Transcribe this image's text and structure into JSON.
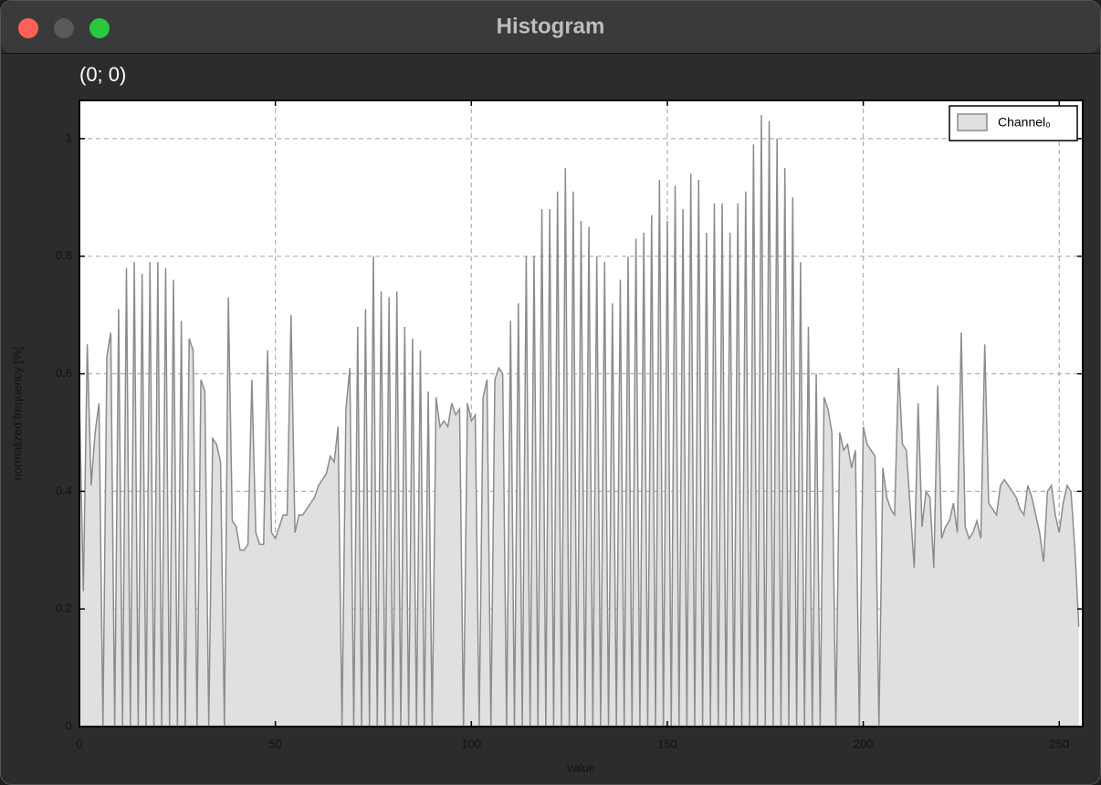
{
  "window": {
    "title": "Histogram"
  },
  "cursor_position": "(0; 0)",
  "chart_data": {
    "type": "area",
    "xlabel": "value",
    "ylabel": "normalized frequency [%]",
    "x": [
      0,
      1,
      2,
      3,
      4,
      5,
      6,
      7,
      8,
      9,
      10,
      11,
      12,
      13,
      14,
      15,
      16,
      17,
      18,
      19,
      20,
      21,
      22,
      23,
      24,
      25,
      26,
      27,
      28,
      29,
      30,
      31,
      32,
      33,
      34,
      35,
      36,
      37,
      38,
      39,
      40,
      41,
      42,
      43,
      44,
      45,
      46,
      47,
      48,
      49,
      50,
      51,
      52,
      53,
      54,
      55,
      56,
      57,
      58,
      59,
      60,
      61,
      62,
      63,
      64,
      65,
      66,
      67,
      68,
      69,
      70,
      71,
      72,
      73,
      74,
      75,
      76,
      77,
      78,
      79,
      80,
      81,
      82,
      83,
      84,
      85,
      86,
      87,
      88,
      89,
      90,
      91,
      92,
      93,
      94,
      95,
      96,
      97,
      98,
      99,
      100,
      101,
      102,
      103,
      104,
      105,
      106,
      107,
      108,
      109,
      110,
      111,
      112,
      113,
      114,
      115,
      116,
      117,
      118,
      119,
      120,
      121,
      122,
      123,
      124,
      125,
      126,
      127,
      128,
      129,
      130,
      131,
      132,
      133,
      134,
      135,
      136,
      137,
      138,
      139,
      140,
      141,
      142,
      143,
      144,
      145,
      146,
      147,
      148,
      149,
      150,
      151,
      152,
      153,
      154,
      155,
      156,
      157,
      158,
      159,
      160,
      161,
      162,
      163,
      164,
      165,
      166,
      167,
      168,
      169,
      170,
      171,
      172,
      173,
      174,
      175,
      176,
      177,
      178,
      179,
      180,
      181,
      182,
      183,
      184,
      185,
      186,
      187,
      188,
      189,
      190,
      191,
      192,
      193,
      194,
      195,
      196,
      197,
      198,
      199,
      200,
      201,
      202,
      203,
      204,
      205,
      206,
      207,
      208,
      209,
      210,
      211,
      212,
      213,
      214,
      215,
      216,
      217,
      218,
      219,
      220,
      221,
      222,
      223,
      224,
      225,
      226,
      227,
      228,
      229,
      230,
      231,
      232,
      233,
      234,
      235,
      236,
      237,
      238,
      239,
      240,
      241,
      242,
      243,
      244,
      245,
      246,
      247,
      248,
      249,
      250,
      251,
      252,
      253,
      254,
      255
    ],
    "series": [
      {
        "name": "Channel₀",
        "color": "#8c8c8c",
        "fill": "#e0e0e0",
        "values": [
          0.56,
          0.23,
          0.65,
          0.41,
          0.5,
          0.55,
          0,
          0.63,
          0.67,
          0,
          0.71,
          0,
          0.78,
          0,
          0.79,
          0,
          0.77,
          0,
          0.79,
          0,
          0.79,
          0,
          0.78,
          0,
          0.76,
          0,
          0.69,
          0,
          0.66,
          0.64,
          0,
          0.59,
          0.57,
          0,
          0.49,
          0.48,
          0.45,
          0,
          0.73,
          0.35,
          0.34,
          0.3,
          0.3,
          0.31,
          0.59,
          0.33,
          0.31,
          0.31,
          0.64,
          0.33,
          0.32,
          0.34,
          0.36,
          0.36,
          0.7,
          0.33,
          0.36,
          0.36,
          0.37,
          0.38,
          0.39,
          0.41,
          0.42,
          0.43,
          0.46,
          0.45,
          0.51,
          0,
          0.54,
          0.61,
          0,
          0.68,
          0,
          0.71,
          0,
          0.8,
          0,
          0.74,
          0,
          0.73,
          0,
          0.74,
          0,
          0.68,
          0,
          0.66,
          0,
          0.64,
          0,
          0.57,
          0,
          0.56,
          0.51,
          0.52,
          0.51,
          0.55,
          0.53,
          0.54,
          0,
          0.55,
          0.52,
          0.53,
          0,
          0.56,
          0.59,
          0,
          0.59,
          0.61,
          0.6,
          0,
          0.69,
          0,
          0.72,
          0,
          0.8,
          0,
          0.8,
          0,
          0.88,
          0,
          0.88,
          0,
          0.91,
          0,
          0.95,
          0,
          0.91,
          0,
          0.86,
          0,
          0.85,
          0,
          0.8,
          0,
          0.79,
          0,
          0.72,
          0,
          0.76,
          0,
          0.8,
          0,
          0.83,
          0,
          0.84,
          0,
          0.87,
          0,
          0.93,
          0,
          0.86,
          0,
          0.92,
          0,
          0.88,
          0,
          0.94,
          0,
          0.93,
          0,
          0.84,
          0,
          0.89,
          0,
          0.89,
          0,
          0.84,
          0,
          0.89,
          0,
          0.91,
          0,
          0.99,
          0,
          1.04,
          0,
          1.03,
          0,
          1.0,
          0,
          0.95,
          0,
          0.9,
          0,
          0.79,
          0,
          0.68,
          0,
          0.6,
          0,
          0.56,
          0.54,
          0.5,
          0,
          0.5,
          0.47,
          0.48,
          0.44,
          0.47,
          0,
          0.51,
          0.48,
          0.47,
          0.46,
          0,
          0.44,
          0.39,
          0.37,
          0.36,
          0.61,
          0.48,
          0.47,
          0.37,
          0.27,
          0.55,
          0.34,
          0.4,
          0.39,
          0.27,
          0.58,
          0.32,
          0.34,
          0.35,
          0.38,
          0.33,
          0.67,
          0.34,
          0.32,
          0.33,
          0.35,
          0.32,
          0.65,
          0.38,
          0.37,
          0.36,
          0.41,
          0.42,
          0.41,
          0.4,
          0.39,
          0.37,
          0.36,
          0.41,
          0.39,
          0.36,
          0.33,
          0.28,
          0.4,
          0.41,
          0.36,
          0.33,
          0.38,
          0.41,
          0.4,
          0.3,
          0.17
        ]
      }
    ],
    "xlim": [
      0,
      256
    ],
    "xticks": [
      0,
      50,
      100,
      150,
      200,
      250
    ],
    "ylim": [
      0,
      1.065
    ],
    "yticks": [
      0,
      0.2,
      0.4,
      0.6,
      0.8,
      1
    ],
    "grid": true,
    "legend": "upper right"
  }
}
